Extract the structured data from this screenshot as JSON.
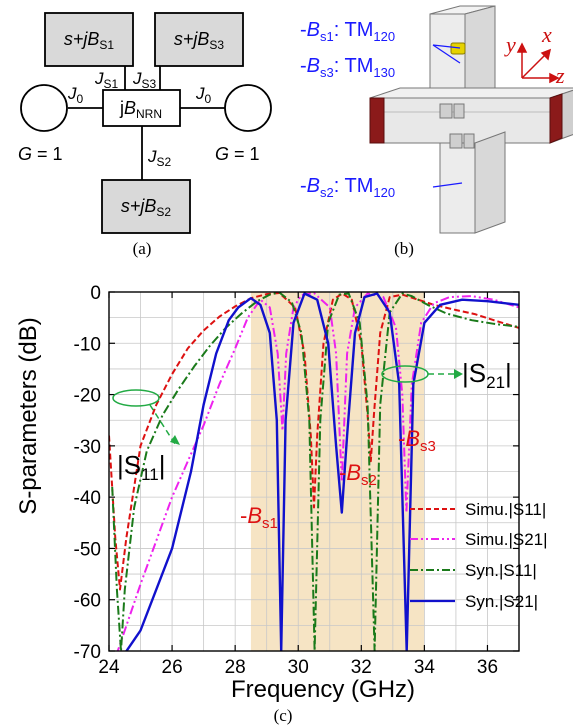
{
  "panel_a": {
    "caption": "(a)",
    "resonator_s1": {
      "pre": "s+j",
      "sym": "B",
      "sub": "S1"
    },
    "resonator_s3": {
      "pre": "s+j",
      "sym": "B",
      "sub": "S3"
    },
    "resonator_s2": {
      "pre": "s+j",
      "sym": "B",
      "sub": "S2"
    },
    "nrn": {
      "pre": "j",
      "sym": "B",
      "sub": "NRN"
    },
    "j_s1": {
      "sym": "J",
      "sub": "S1"
    },
    "j_s3": {
      "sym": "J",
      "sub": "S3"
    },
    "j_s2": {
      "sym": "J",
      "sub": "S2"
    },
    "j0_left": {
      "sym": "J",
      "sub": "0"
    },
    "j0_right": {
      "sym": "J",
      "sub": "0"
    },
    "g_left": {
      "sym": "G",
      "rest": " = 1"
    },
    "g_right": {
      "sym": "G",
      "rest": " = 1"
    }
  },
  "panel_b": {
    "caption": "(b)",
    "label_s1": {
      "pre": "-",
      "sym": "B",
      "sub": "s1",
      "post": ": TM",
      "mode": "120"
    },
    "label_s3": {
      "pre": "-",
      "sym": "B",
      "sub": "s3",
      "post": ": TM",
      "mode": "130"
    },
    "label_s2": {
      "pre": "-",
      "sym": "B",
      "sub": "s2",
      "post": ": TM",
      "mode": "120"
    },
    "axis_x": "x",
    "axis_y": "y",
    "axis_z": "z",
    "colors": {
      "label": "#1a1aff",
      "axis": "#cc1111",
      "port": "#8b1a1a",
      "post": "#e6d200"
    }
  },
  "panel_c": {
    "caption": "(c)"
  },
  "chart_data": {
    "type": "line",
    "xlabel": "Frequency (GHz)",
    "ylabel": "S-parameters (dB)",
    "xlim": [
      24,
      37
    ],
    "ylim": [
      -70,
      0
    ],
    "xticks": [
      "24",
      "26",
      "28",
      "30",
      "32",
      "34",
      "36"
    ],
    "yticks": [
      "0",
      "-10",
      "-20",
      "-30",
      "-40",
      "-50",
      "-60",
      "-70"
    ],
    "grid": true,
    "passband": [
      28.5,
      34
    ],
    "legend_position": "bottom-right",
    "series": [
      {
        "name": "Simu.|S11|",
        "color": "#dd1111",
        "dash": "dashed",
        "points": [
          [
            24,
            -28
          ],
          [
            24.2,
            -48
          ],
          [
            24.35,
            -58
          ],
          [
            24.55,
            -48
          ],
          [
            25,
            -30
          ],
          [
            25.5,
            -22
          ],
          [
            26,
            -16
          ],
          [
            26.5,
            -11
          ],
          [
            27,
            -7.5
          ],
          [
            27.5,
            -4.8
          ],
          [
            28,
            -2.8
          ],
          [
            28.5,
            -1.2
          ],
          [
            29,
            -0.4
          ],
          [
            29.4,
            -0.2
          ],
          [
            29.9,
            -3
          ],
          [
            30.2,
            -12
          ],
          [
            30.4,
            -28
          ],
          [
            30.5,
            -42
          ],
          [
            30.6,
            -28
          ],
          [
            30.8,
            -10
          ],
          [
            31.1,
            -1.5
          ],
          [
            31.4,
            -0.3
          ],
          [
            31.7,
            -1.5
          ],
          [
            32,
            -10
          ],
          [
            32.2,
            -24
          ],
          [
            32.3,
            -33
          ],
          [
            32.4,
            -24
          ],
          [
            32.6,
            -8
          ],
          [
            32.9,
            -1
          ],
          [
            33.3,
            -0.5
          ],
          [
            33.8,
            -1.5
          ],
          [
            34.3,
            -2.5
          ],
          [
            35,
            -3.5
          ],
          [
            35.6,
            -4.3
          ],
          [
            36.2,
            -5.5
          ],
          [
            37,
            -7
          ]
        ]
      },
      {
        "name": "Simu.|S21|",
        "color": "#ee22ee",
        "dash": "dash-dot-dot",
        "points": [
          [
            24,
            -75
          ],
          [
            25,
            -57
          ],
          [
            26,
            -40
          ],
          [
            27,
            -26
          ],
          [
            27.5,
            -18
          ],
          [
            28,
            -11
          ],
          [
            28.4,
            -5
          ],
          [
            28.8,
            -1.5
          ],
          [
            29.1,
            -3
          ],
          [
            29.35,
            -12
          ],
          [
            29.5,
            -27
          ],
          [
            29.62,
            -12
          ],
          [
            29.85,
            -3
          ],
          [
            30.1,
            -0.6
          ],
          [
            30.5,
            -0.2
          ],
          [
            31,
            -3
          ],
          [
            31.2,
            -12
          ],
          [
            31.38,
            -37
          ],
          [
            31.55,
            -12
          ],
          [
            31.8,
            -3
          ],
          [
            32.2,
            -0.3
          ],
          [
            32.7,
            -1
          ],
          [
            33.1,
            -7
          ],
          [
            33.3,
            -20
          ],
          [
            33.43,
            -43
          ],
          [
            33.6,
            -18
          ],
          [
            33.9,
            -6
          ],
          [
            34.3,
            -2.2
          ],
          [
            34.8,
            -1
          ],
          [
            35.5,
            -0.8
          ],
          [
            36.2,
            -1.5
          ],
          [
            37,
            -3
          ]
        ]
      },
      {
        "name": "Syn.|S11|",
        "color": "#1a7a1a",
        "dash": "dash-dot",
        "points": [
          [
            24.1,
            -38
          ],
          [
            24.25,
            -58
          ],
          [
            24.38,
            -70
          ],
          [
            24.5,
            -58
          ],
          [
            24.8,
            -42
          ],
          [
            25.2,
            -31
          ],
          [
            25.7,
            -24
          ],
          [
            26.2,
            -19
          ],
          [
            26.7,
            -14.5
          ],
          [
            27.2,
            -10.5
          ],
          [
            27.7,
            -7
          ],
          [
            28.2,
            -4.2
          ],
          [
            28.7,
            -1.8
          ],
          [
            29.1,
            -0.5
          ],
          [
            29.4,
            -0.1
          ],
          [
            29.8,
            -2
          ],
          [
            30.1,
            -8
          ],
          [
            30.35,
            -25
          ],
          [
            30.52,
            -70
          ],
          [
            30.7,
            -25
          ],
          [
            30.95,
            -6
          ],
          [
            31.3,
            -0.5
          ],
          [
            31.6,
            -0.3
          ],
          [
            31.95,
            -6
          ],
          [
            32.2,
            -22
          ],
          [
            32.42,
            -70
          ],
          [
            32.6,
            -22
          ],
          [
            32.9,
            -4
          ],
          [
            33.3,
            -0.3
          ],
          [
            33.6,
            -0.8
          ],
          [
            34.1,
            -2.5
          ],
          [
            34.7,
            -4.2
          ],
          [
            35.5,
            -5.5
          ],
          [
            36.2,
            -6.2
          ],
          [
            37,
            -6.8
          ]
        ]
      },
      {
        "name": "Syn.|S21|",
        "color": "#1111cc",
        "dash": "solid",
        "points": [
          [
            24,
            -75
          ],
          [
            25,
            -66
          ],
          [
            26,
            -50
          ],
          [
            26.6,
            -35
          ],
          [
            27,
            -22
          ],
          [
            27.4,
            -12
          ],
          [
            27.8,
            -5.5
          ],
          [
            28.1,
            -3
          ],
          [
            28.5,
            -1.2
          ],
          [
            28.8,
            -2.5
          ],
          [
            29.1,
            -8
          ],
          [
            29.32,
            -25
          ],
          [
            29.46,
            -70
          ],
          [
            29.6,
            -25
          ],
          [
            29.85,
            -6
          ],
          [
            30.2,
            -0.3
          ],
          [
            30.6,
            -1.5
          ],
          [
            30.95,
            -10
          ],
          [
            31.2,
            -30
          ],
          [
            31.38,
            -43
          ],
          [
            31.55,
            -28
          ],
          [
            31.8,
            -8
          ],
          [
            32.1,
            -1
          ],
          [
            32.5,
            -0.3
          ],
          [
            32.9,
            -4
          ],
          [
            33.2,
            -18
          ],
          [
            33.44,
            -70
          ],
          [
            33.65,
            -18
          ],
          [
            34,
            -6
          ],
          [
            34.5,
            -2.5
          ],
          [
            35.2,
            -1.5
          ],
          [
            36,
            -1.8
          ],
          [
            37,
            -2.5
          ]
        ]
      }
    ],
    "annotations": [
      {
        "id": "bs1",
        "pre": "-",
        "sym": "B",
        "sub": "s1",
        "color": "#dd1111"
      },
      {
        "id": "bs2",
        "pre": "-",
        "sym": "B",
        "sub": "s2",
        "color": "#dd1111"
      },
      {
        "id": "bs3",
        "pre": "-",
        "sym": "B",
        "sub": "s3",
        "color": "#dd1111"
      },
      {
        "id": "s11",
        "text": "|S",
        "sub": "11",
        "post": "|"
      },
      {
        "id": "s21",
        "text": "|S",
        "sub": "21",
        "post": "|"
      }
    ]
  }
}
